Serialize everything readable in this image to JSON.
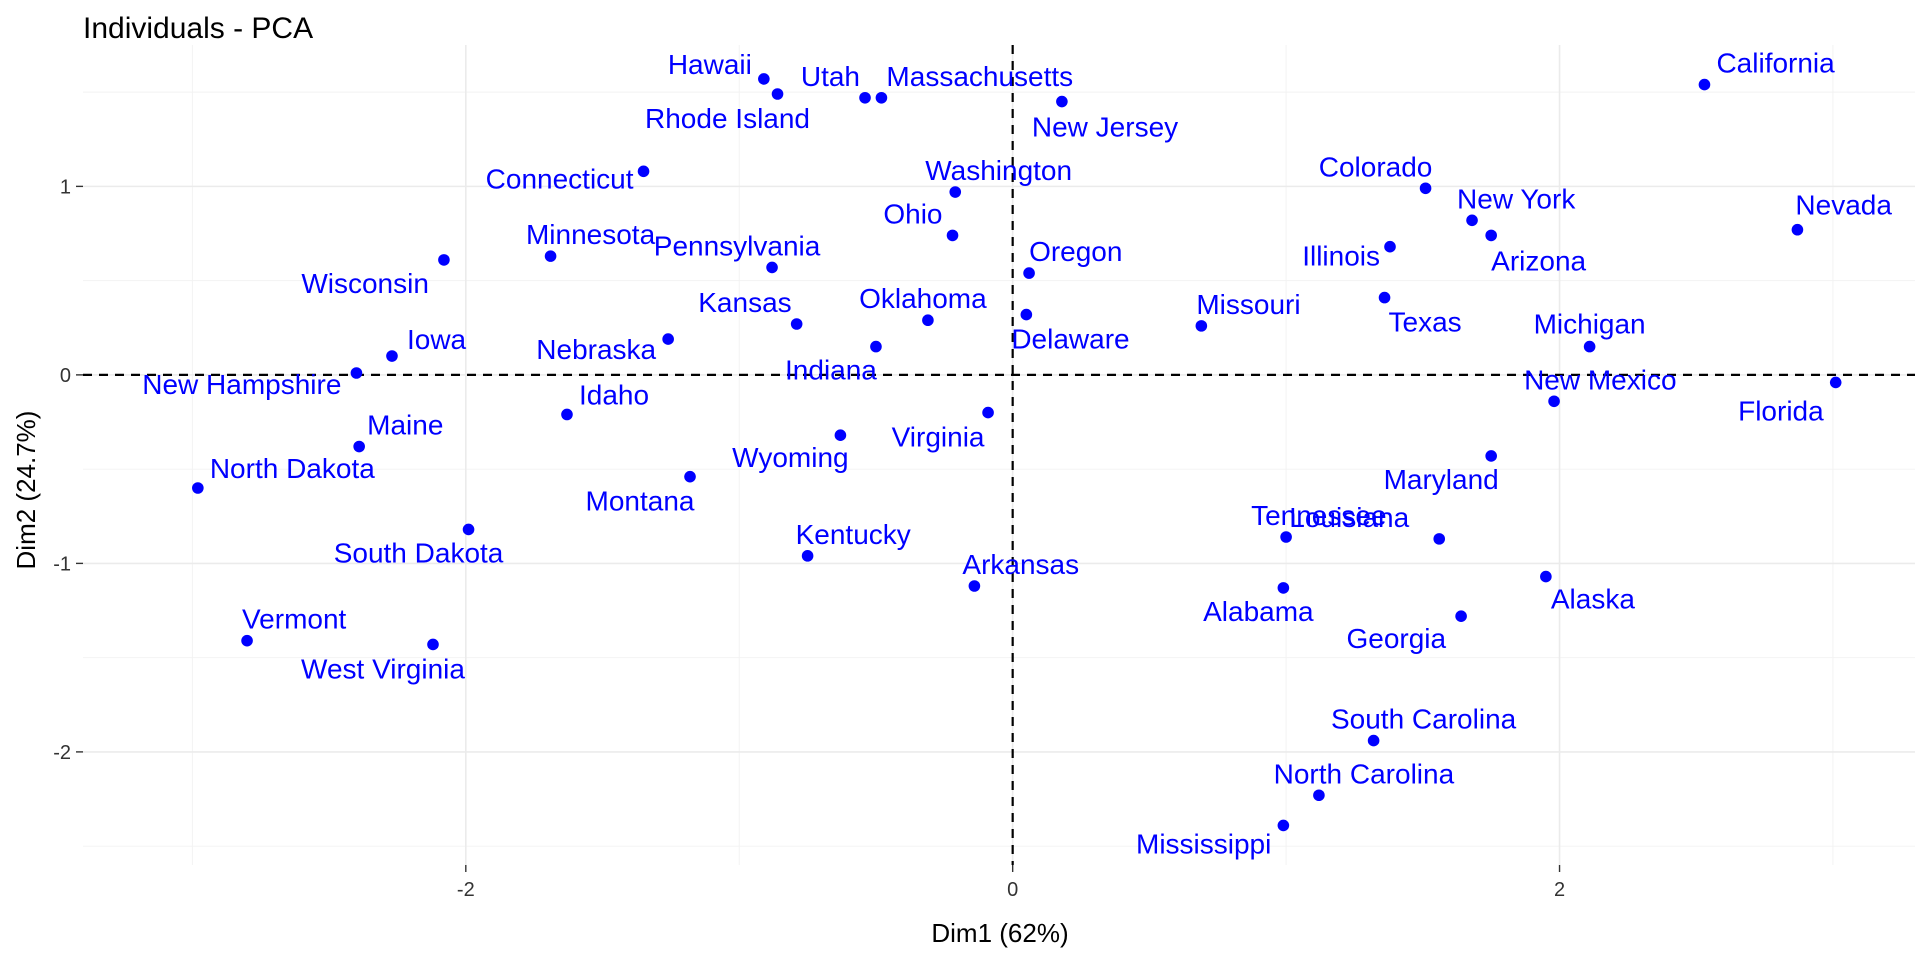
{
  "chart_data": {
    "type": "scatter",
    "title": "Individuals - PCA",
    "xlabel": "Dim1 (62%)",
    "ylabel": "Dim2 (24.7%)",
    "xlim": [
      -3.4,
      3.3
    ],
    "ylim": [
      -2.6,
      1.75
    ],
    "xticks": [
      -2,
      0,
      2
    ],
    "yticks": [
      -2,
      -1,
      0,
      1
    ],
    "reference_lines": {
      "x": 0,
      "y": 0,
      "style": "dashed"
    },
    "grid": true,
    "point_color": "#0000ff",
    "label_color": "#0000ff",
    "points": [
      {
        "label": "California",
        "x": 2.53,
        "y": 1.54
      },
      {
        "label": "Nevada",
        "x": 2.87,
        "y": 0.77
      },
      {
        "label": "Florida",
        "x": 3.01,
        "y": -0.04
      },
      {
        "label": "Michigan",
        "x": 2.11,
        "y": 0.15
      },
      {
        "label": "New Mexico",
        "x": 1.98,
        "y": -0.14
      },
      {
        "label": "Arizona",
        "x": 1.75,
        "y": 0.74
      },
      {
        "label": "New York",
        "x": 1.68,
        "y": 0.82
      },
      {
        "label": "Colorado",
        "x": 1.51,
        "y": 0.99
      },
      {
        "label": "Illinois",
        "x": 1.38,
        "y": 0.68
      },
      {
        "label": "Texas",
        "x": 1.36,
        "y": 0.41
      },
      {
        "label": "Maryland",
        "x": 1.75,
        "y": -0.43
      },
      {
        "label": "Alaska",
        "x": 1.95,
        "y": -1.07
      },
      {
        "label": "Georgia",
        "x": 1.64,
        "y": -1.28
      },
      {
        "label": "Louisiana",
        "x": 1.56,
        "y": -0.87
      },
      {
        "label": "South Carolina",
        "x": 1.32,
        "y": -1.94
      },
      {
        "label": "North Carolina",
        "x": 1.12,
        "y": -2.23
      },
      {
        "label": "Mississippi",
        "x": 0.99,
        "y": -2.39
      },
      {
        "label": "Tennessee",
        "x": 1.0,
        "y": -0.86
      },
      {
        "label": "Alabama",
        "x": 0.99,
        "y": -1.13
      },
      {
        "label": "Missouri",
        "x": 0.69,
        "y": 0.26
      },
      {
        "label": "New Jersey",
        "x": 0.18,
        "y": 1.45
      },
      {
        "label": "Oregon",
        "x": 0.06,
        "y": 0.54
      },
      {
        "label": "Delaware",
        "x": 0.05,
        "y": 0.32
      },
      {
        "label": "Washington",
        "x": -0.21,
        "y": 0.97
      },
      {
        "label": "Ohio",
        "x": -0.22,
        "y": 0.74
      },
      {
        "label": "Virginia",
        "x": -0.09,
        "y": -0.2
      },
      {
        "label": "Arkansas",
        "x": -0.14,
        "y": -1.12
      },
      {
        "label": "Massachusetts",
        "x": -0.48,
        "y": 1.47
      },
      {
        "label": "Utah",
        "x": -0.54,
        "y": 1.47
      },
      {
        "label": "Oklahoma",
        "x": -0.31,
        "y": 0.29
      },
      {
        "label": "Indiana",
        "x": -0.5,
        "y": 0.15
      },
      {
        "label": "Wyoming",
        "x": -0.63,
        "y": -0.32
      },
      {
        "label": "Kentucky",
        "x": -0.75,
        "y": -0.96
      },
      {
        "label": "Kansas",
        "x": -0.79,
        "y": 0.27
      },
      {
        "label": "Pennsylvania",
        "x": -0.88,
        "y": 0.57
      },
      {
        "label": "Rhode Island",
        "x": -0.86,
        "y": 1.49
      },
      {
        "label": "Hawaii",
        "x": -0.91,
        "y": 1.57
      },
      {
        "label": "Connecticut",
        "x": -1.35,
        "y": 1.08
      },
      {
        "label": "Nebraska",
        "x": -1.26,
        "y": 0.19
      },
      {
        "label": "Montana",
        "x": -1.18,
        "y": -0.54
      },
      {
        "label": "Minnesota",
        "x": -1.69,
        "y": 0.63
      },
      {
        "label": "Idaho",
        "x": -1.63,
        "y": -0.21
      },
      {
        "label": "Wisconsin",
        "x": -2.08,
        "y": 0.61
      },
      {
        "label": "South Dakota",
        "x": -1.99,
        "y": -0.82
      },
      {
        "label": "Iowa",
        "x": -2.27,
        "y": 0.1
      },
      {
        "label": "New Hampshire",
        "x": -2.4,
        "y": 0.01
      },
      {
        "label": "Maine",
        "x": -2.39,
        "y": -0.38
      },
      {
        "label": "West Virginia",
        "x": -2.12,
        "y": -1.43
      },
      {
        "label": "Vermont",
        "x": -2.8,
        "y": -1.41
      },
      {
        "label": "North Dakota",
        "x": -2.98,
        "y": -0.6
      }
    ]
  }
}
